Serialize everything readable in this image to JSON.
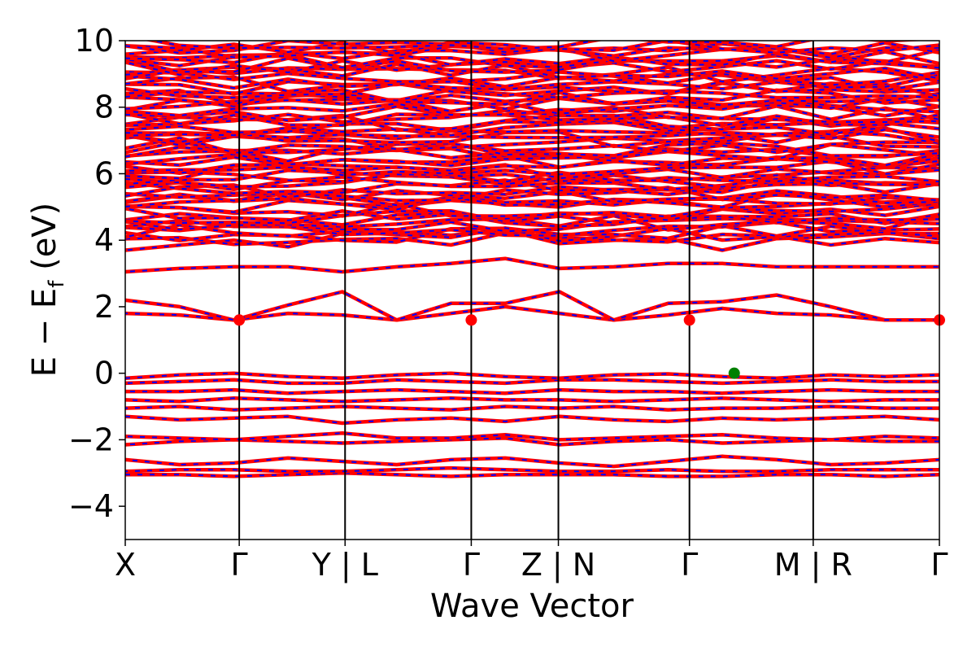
{
  "chart_data": {
    "type": "line",
    "xlabel": "Wave Vector",
    "ylabel": {
      "main": "E  −  E",
      "sub": "f",
      "unit": " (eV)"
    },
    "ylim": [
      -5,
      10
    ],
    "yticks": [
      {
        "value": -4,
        "label": "−4"
      },
      {
        "value": -2,
        "label": "−2"
      },
      {
        "value": 0,
        "label": "0"
      },
      {
        "value": 2,
        "label": "2"
      },
      {
        "value": 4,
        "label": "4"
      },
      {
        "value": 6,
        "label": "6"
      },
      {
        "value": 8,
        "label": "8"
      },
      {
        "value": 10,
        "label": "10"
      }
    ],
    "xlim": [
      0,
      1
    ],
    "kpoints": [
      {
        "position": 0.0,
        "label": "X"
      },
      {
        "position": 0.14,
        "label": "Γ"
      },
      {
        "position": 0.27,
        "label": "Y | L"
      },
      {
        "position": 0.425,
        "label": "Γ"
      },
      {
        "position": 0.532,
        "label": "Z | N"
      },
      {
        "position": 0.693,
        "label": "Γ"
      },
      {
        "position": 0.845,
        "label": "M | R"
      },
      {
        "position": 1.0,
        "label": "Γ"
      }
    ],
    "segment_breaks": [
      0.27,
      0.532,
      0.845
    ],
    "band_line_color": "#ff0000",
    "band_dash_color": "#0000ff",
    "conduction_band_minima": [
      {
        "k": 0.14,
        "e": 1.6
      },
      {
        "k": 0.425,
        "e": 1.6
      },
      {
        "k": 0.693,
        "e": 1.6
      },
      {
        "k": 1.0,
        "e": 1.6
      }
    ],
    "valence_band_maximum": {
      "k": 0.748,
      "e": 0.0
    },
    "cbm_color": "#ff0000",
    "vbm_color": "#008000",
    "bands_core": [
      [
        -3.05,
        -3.05,
        -3.1,
        -3.05,
        -3.0,
        -3.05,
        -3.1,
        -3.05,
        -3.05,
        -3.05,
        -3.1,
        -3.1,
        -3.05,
        -3.05,
        -3.1,
        -3.05
      ],
      [
        -2.95,
        -2.9,
        -2.9,
        -2.95,
        -2.95,
        -2.9,
        -2.85,
        -2.9,
        -2.95,
        -2.95,
        -2.9,
        -2.95,
        -2.95,
        -2.9,
        -2.9,
        -2.9
      ],
      [
        -2.6,
        -2.75,
        -2.7,
        -2.55,
        -2.65,
        -2.75,
        -2.6,
        -2.55,
        -2.7,
        -2.8,
        -2.65,
        -2.5,
        -2.6,
        -2.75,
        -2.7,
        -2.6
      ],
      [
        -2.15,
        -2.05,
        -2.0,
        -2.05,
        -2.1,
        -2.05,
        -2.0,
        -1.95,
        -2.15,
        -2.05,
        -2.0,
        -2.1,
        -2.05,
        -2.0,
        -2.05,
        -2.05
      ],
      [
        -1.9,
        -1.95,
        -2.0,
        -1.9,
        -1.8,
        -1.95,
        -1.95,
        -1.85,
        -2.0,
        -1.95,
        -1.9,
        -1.85,
        -1.95,
        -2.0,
        -1.9,
        -1.95
      ],
      [
        -1.3,
        -1.4,
        -1.35,
        -1.3,
        -1.5,
        -1.4,
        -1.35,
        -1.45,
        -1.3,
        -1.4,
        -1.45,
        -1.35,
        -1.4,
        -1.35,
        -1.3,
        -1.4
      ],
      [
        -1.05,
        -1.0,
        -1.1,
        -1.05,
        -1.0,
        -1.05,
        -1.1,
        -1.0,
        -1.05,
        -1.0,
        -1.1,
        -1.05,
        -1.05,
        -1.0,
        -1.05,
        -1.05
      ],
      [
        -0.8,
        -0.85,
        -0.75,
        -0.8,
        -0.85,
        -0.8,
        -0.75,
        -0.8,
        -0.8,
        -0.85,
        -0.8,
        -0.75,
        -0.8,
        -0.85,
        -0.8,
        -0.8
      ],
      [
        -0.55,
        -0.55,
        -0.5,
        -0.6,
        -0.55,
        -0.5,
        -0.55,
        -0.6,
        -0.5,
        -0.55,
        -0.55,
        -0.6,
        -0.55,
        -0.5,
        -0.55,
        -0.55
      ],
      [
        -0.3,
        -0.25,
        -0.2,
        -0.3,
        -0.3,
        -0.2,
        -0.25,
        -0.3,
        -0.2,
        -0.2,
        -0.25,
        -0.3,
        -0.25,
        -0.2,
        -0.25,
        -0.25
      ],
      [
        -0.15,
        -0.05,
        0.0,
        -0.1,
        -0.15,
        -0.05,
        0.0,
        -0.1,
        -0.15,
        -0.05,
        -0.02,
        -0.1,
        -0.15,
        -0.05,
        -0.1,
        -0.05
      ],
      [
        1.8,
        1.75,
        1.6,
        1.8,
        1.75,
        1.6,
        1.8,
        2.0,
        1.8,
        1.6,
        1.75,
        1.95,
        1.8,
        1.75,
        1.6,
        1.6
      ],
      [
        2.2,
        2.0,
        1.6,
        2.05,
        2.45,
        1.6,
        2.1,
        2.1,
        2.45,
        1.6,
        2.1,
        2.15,
        2.35,
        2.0,
        1.6,
        1.6
      ],
      [
        3.05,
        3.15,
        3.2,
        3.2,
        3.05,
        3.2,
        3.3,
        3.45,
        3.15,
        3.2,
        3.3,
        3.3,
        3.2,
        3.2,
        3.2,
        3.2
      ],
      [
        3.7,
        3.85,
        4.0,
        3.8,
        4.2,
        4.25,
        4.15,
        4.3,
        3.9,
        4.0,
        4.05,
        3.7,
        4.05,
        4.1,
        4.2,
        4.2
      ]
    ],
    "bands_upper_fill": {
      "min": 4.0,
      "max": 10.0,
      "count": 62
    }
  }
}
